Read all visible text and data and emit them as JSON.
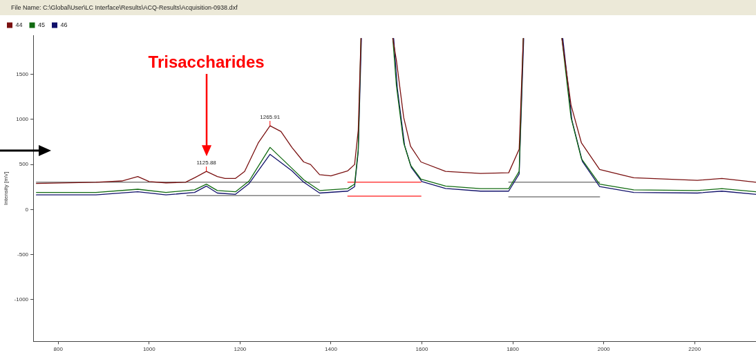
{
  "chart_data": {
    "type": "line",
    "title": "File Name: C:\\Global\\User\\LC Interface\\Results\\ACQ-Results\\Acquisition-0938.dxf",
    "ylabel": "Intensity [mV]",
    "xlim": [
      745,
      2335
    ],
    "xticks": [
      800,
      1000,
      1200,
      1400,
      1600,
      1800,
      2000,
      2200
    ],
    "ylim": [
      -1465,
      1935
    ],
    "yticks": [
      -1000,
      -500,
      0,
      500,
      1000,
      1500
    ],
    "grid": false,
    "legend": "top left",
    "marker": "none",
    "line_style": "solid",
    "annotations": [
      "Trisaccharides",
      {
        "text": "1125.88",
        "x": 1125.88,
        "y": 423
      },
      {
        "text": "1265.91",
        "x": 1265.91,
        "y": 930
      }
    ],
    "series": [
      {
        "name": "44",
        "color": "#7a1010",
        "x": [
          752,
          883,
          940,
          975,
          1000,
          1037,
          1080,
          1100,
          1126,
          1150,
          1167,
          1190,
          1210,
          1240,
          1266,
          1290,
          1314,
          1340,
          1355,
          1375,
          1400,
          1437,
          1452,
          1460,
          1466,
          1500,
          1536,
          1544,
          1560,
          1575,
          1598,
          1652,
          1729,
          1791,
          1814,
          1823,
          1865,
          1908,
          1928,
          1951,
          1991,
          2066,
          2206,
          2260,
          2335
        ],
        "values": [
          289,
          303,
          317,
          366,
          310,
          296,
          303,
          352,
          423,
          366,
          345,
          345,
          423,
          739,
          930,
          866,
          690,
          528,
          500,
          387,
          373,
          430,
          500,
          880,
          1900,
          null,
          1900,
          1654,
          1021,
          704,
          528,
          423,
          401,
          408,
          669,
          1900,
          null,
          1900,
          1162,
          739,
          444,
          352,
          324,
          345,
          303
        ]
      },
      {
        "name": "45",
        "color": "#106a10",
        "x": [
          752,
          883,
          975,
          1037,
          1100,
          1126,
          1150,
          1190,
          1220,
          1266,
          1314,
          1340,
          1375,
          1437,
          1452,
          1460,
          1466,
          1500,
          1536,
          1544,
          1560,
          1575,
          1598,
          1652,
          1729,
          1791,
          1814,
          1823,
          1865,
          1908,
          1928,
          1951,
          1991,
          2066,
          2206,
          2260,
          2335
        ],
        "values": [
          190,
          190,
          225,
          190,
          218,
          282,
          211,
          197,
          317,
          690,
          458,
          331,
          211,
          232,
          282,
          669,
          1900,
          null,
          1900,
          1373,
          739,
          493,
          338,
          261,
          232,
          232,
          423,
          1900,
          null,
          1900,
          1021,
          563,
          282,
          218,
          211,
          232,
          197
        ]
      },
      {
        "name": "46",
        "color": "#10106a",
        "x": [
          752,
          883,
          975,
          1037,
          1100,
          1126,
          1150,
          1190,
          1220,
          1266,
          1314,
          1340,
          1375,
          1437,
          1452,
          1460,
          1467,
          1500,
          1538,
          1546,
          1562,
          1577,
          1600,
          1652,
          1729,
          1791,
          1814,
          1824,
          1865,
          1910,
          1930,
          1953,
          1991,
          2066,
          2206,
          2260,
          2335
        ],
        "values": [
          162,
          162,
          197,
          162,
          190,
          260,
          183,
          169,
          289,
          613,
          430,
          303,
          183,
          204,
          254,
          641,
          1900,
          null,
          1900,
          1345,
          711,
          465,
          310,
          233,
          204,
          204,
          395,
          1900,
          null,
          1900,
          993,
          535,
          254,
          190,
          183,
          204,
          169
        ]
      },
      {
        "color": "#808080",
        "x": [
          752,
          1375,
          1376,
          1791,
          1991
        ],
        "values": [
          303,
          303,
          null,
          303,
          303
        ]
      },
      {
        "color": "#808080",
        "x": [
          1083,
          1375,
          1376,
          1791,
          1991
        ],
        "values": [
          155,
          155,
          null,
          141,
          141
        ]
      },
      {
        "color": "#ff4040",
        "x": [
          1437,
          1598
        ],
        "values": [
          303,
          303
        ]
      },
      {
        "color": "#ff4040",
        "x": [
          1437,
          1598
        ],
        "values": [
          148,
          148
        ]
      }
    ]
  }
}
